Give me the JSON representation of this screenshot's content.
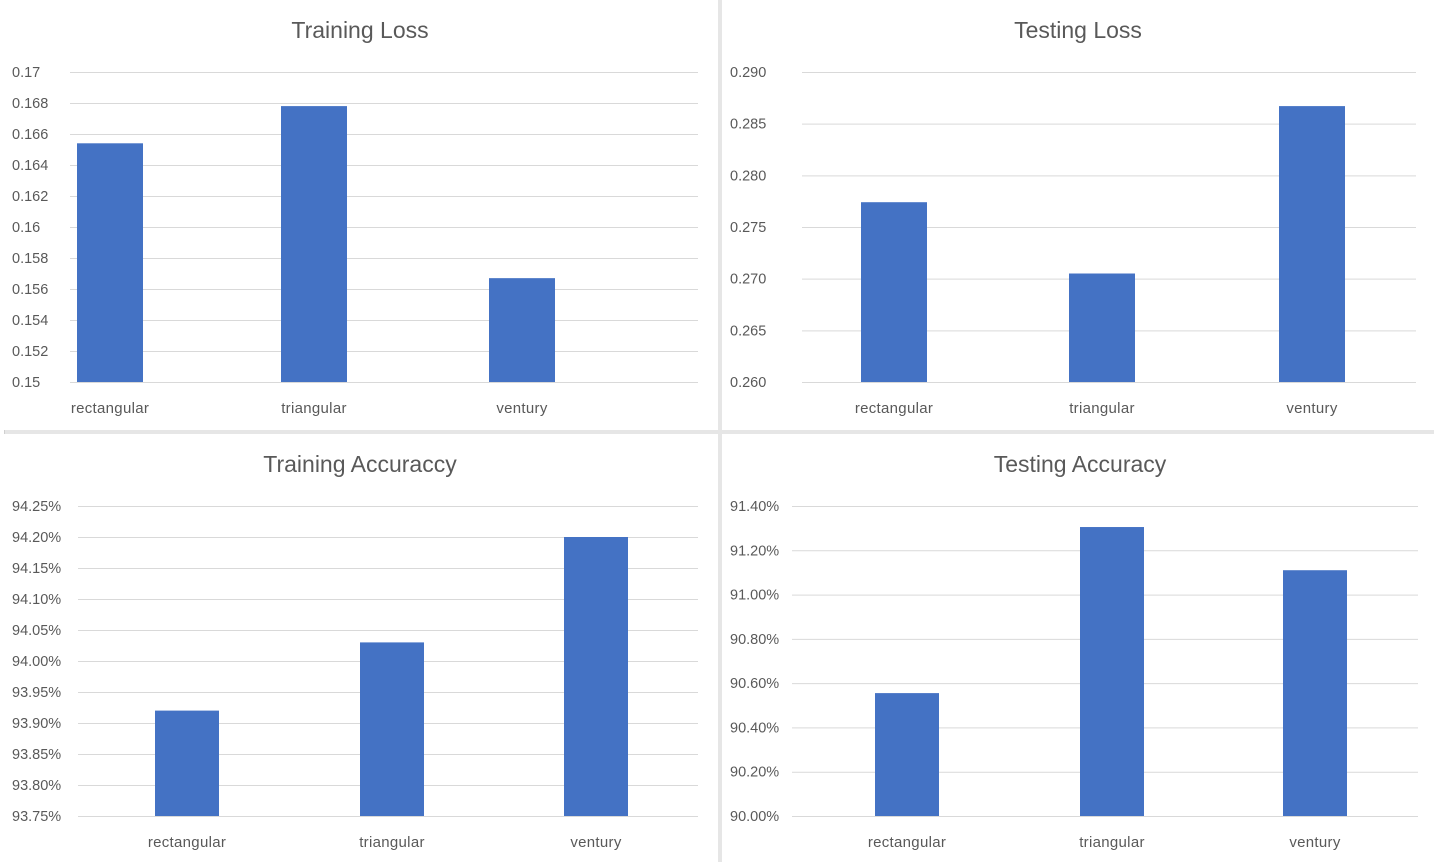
{
  "chart_data": [
    {
      "type": "bar",
      "title": "Training Loss",
      "categories": [
        "rectangular",
        "triangular",
        "ventury"
      ],
      "values": [
        0.1654,
        0.1678,
        0.1567
      ],
      "ylim": [
        0.15,
        0.17
      ],
      "yticks": [
        "0.15",
        "0.152",
        "0.154",
        "0.156",
        "0.158",
        "0.16",
        "0.162",
        "0.164",
        "0.166",
        "0.168",
        "0.17"
      ],
      "grid": true,
      "color": "#4472c4"
    },
    {
      "type": "bar",
      "title": "Testing Loss",
      "categories": [
        "rectangular",
        "triangular",
        "ventury"
      ],
      "values": [
        0.2774,
        0.2705,
        0.2867
      ],
      "ylim": [
        0.26,
        0.29
      ],
      "yticks": [
        "0.260",
        "0.265",
        "0.270",
        "0.275",
        "0.280",
        "0.285",
        "0.290"
      ],
      "grid": true,
      "color": "#4472c4"
    },
    {
      "type": "bar",
      "title": "Training Accuraccy",
      "categories": [
        "rectangular",
        "triangular",
        "ventury"
      ],
      "values": [
        93.92,
        94.03,
        94.2
      ],
      "ylim": [
        93.75,
        94.25
      ],
      "yticks": [
        "93.75%",
        "93.80%",
        "93.85%",
        "93.90%",
        "93.95%",
        "94.00%",
        "94.05%",
        "94.10%",
        "94.15%",
        "94.20%",
        "94.25%"
      ],
      "grid": true,
      "color": "#4472c4"
    },
    {
      "type": "bar",
      "title": "Testing Accuracy",
      "categories": [
        "rectangular",
        "triangular",
        "ventury"
      ],
      "values": [
        90.555,
        91.305,
        91.11
      ],
      "ylim": [
        90.0,
        91.4
      ],
      "yticks": [
        "90.00%",
        "90.20%",
        "90.40%",
        "90.60%",
        "90.80%",
        "91.00%",
        "91.20%",
        "91.40%"
      ],
      "grid": true,
      "color": "#4472c4"
    }
  ]
}
